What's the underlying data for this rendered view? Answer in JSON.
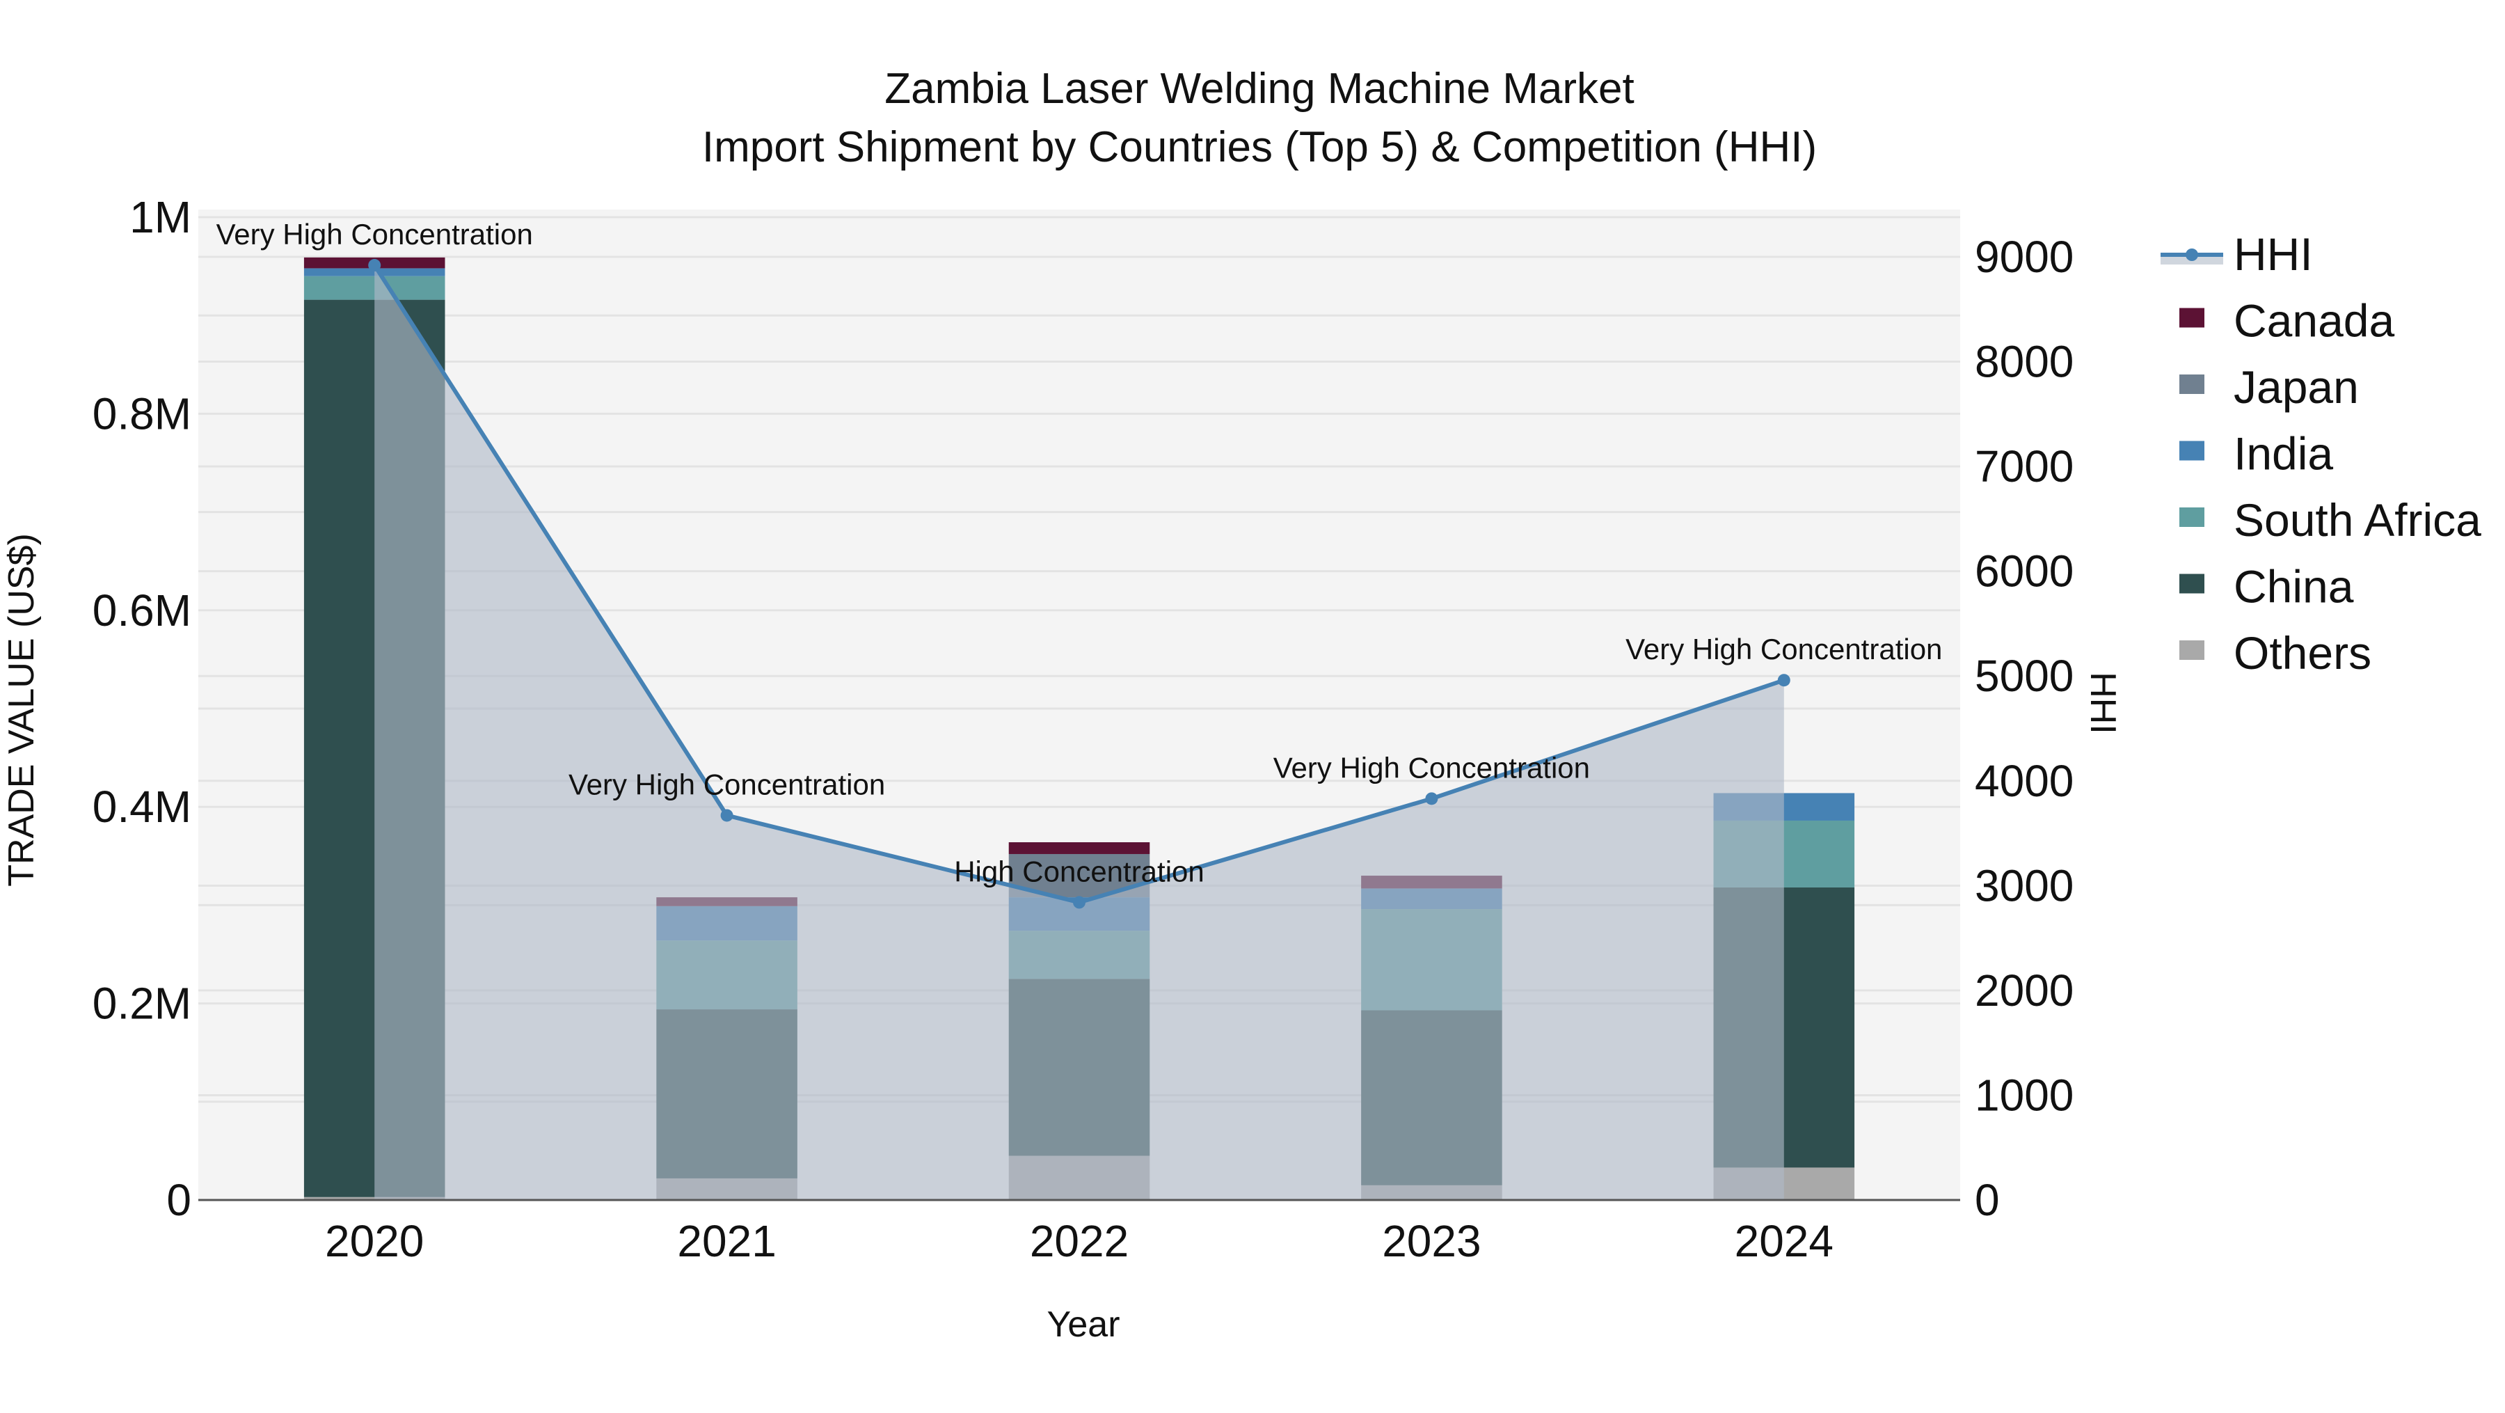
{
  "title": {
    "line1": "Zambia Laser Welding Machine Market",
    "line2": "Import Shipment by Countries (Top 5) & Competition (HHI)"
  },
  "axes": {
    "x_title": "Year",
    "y_left_title": "TRADE VALUE (US$)",
    "y_right_title": "HHI",
    "y_left_ticks": [
      "0",
      "0.2M",
      "0.4M",
      "0.6M",
      "0.8M",
      "1M"
    ],
    "y_right_ticks": [
      "0",
      "1000",
      "2000",
      "3000",
      "4000",
      "5000",
      "6000",
      "7000",
      "8000",
      "9000"
    ]
  },
  "legend": [
    {
      "name": "HHI",
      "type": "line",
      "color": "#4682b4"
    },
    {
      "name": "Canada",
      "type": "box",
      "color": "#5c1234"
    },
    {
      "name": "Japan",
      "type": "box",
      "color": "#708090"
    },
    {
      "name": "India",
      "type": "box",
      "color": "#4682b4"
    },
    {
      "name": "South Africa",
      "type": "box",
      "color": "#5f9ea0"
    },
    {
      "name": "China",
      "type": "box",
      "color": "#2f4f4f"
    },
    {
      "name": "Others",
      "type": "box",
      "color": "#a9a9a9"
    }
  ],
  "colors": {
    "plot_bg": "#f4f4f4",
    "grid": "#e3e3e3",
    "hhi_line": "#4682b4",
    "hhi_fill": "rgba(176,186,200,0.62)",
    "axis_line": "#555555"
  },
  "chart_data": {
    "type": "bar",
    "stacked": true,
    "title": "Zambia Laser Welding Machine Market — Import Shipment by Countries (Top 5) & Competition (HHI)",
    "xlabel": "Year",
    "ylabel": "TRADE VALUE (US$)",
    "y2label": "HHI",
    "categories": [
      "2020",
      "2021",
      "2022",
      "2023",
      "2024"
    ],
    "ylim": [
      0,
      1010000
    ],
    "y2lim": [
      0,
      9452
    ],
    "series": [
      {
        "name": "Others",
        "color": "#a9a9a9",
        "values": [
          3000,
          22000,
          45000,
          15000,
          33000
        ]
      },
      {
        "name": "China",
        "color": "#2f4f4f",
        "values": [
          913000,
          172000,
          180000,
          178000,
          285000
        ]
      },
      {
        "name": "South Africa",
        "color": "#5f9ea0",
        "values": [
          24000,
          70000,
          49000,
          103000,
          68000
        ]
      },
      {
        "name": "India",
        "color": "#4682b4",
        "values": [
          8000,
          35000,
          34000,
          21000,
          28000
        ]
      },
      {
        "name": "Japan",
        "color": "#708090",
        "values": [
          0,
          0,
          44000,
          0,
          0
        ]
      },
      {
        "name": "Canada",
        "color": "#5c1234",
        "values": [
          11000,
          9000,
          12000,
          13000,
          0
        ]
      }
    ],
    "line_series": {
      "name": "HHI",
      "axis": "right",
      "type": "line+area",
      "values": [
        8920,
        3670,
        2840,
        3830,
        4960
      ],
      "annotations": [
        "Very High Concentration",
        "Very High Concentration",
        "High Concentration",
        "Very High Concentration",
        "Very High Concentration"
      ]
    },
    "grid": true,
    "legend_position": "right"
  }
}
